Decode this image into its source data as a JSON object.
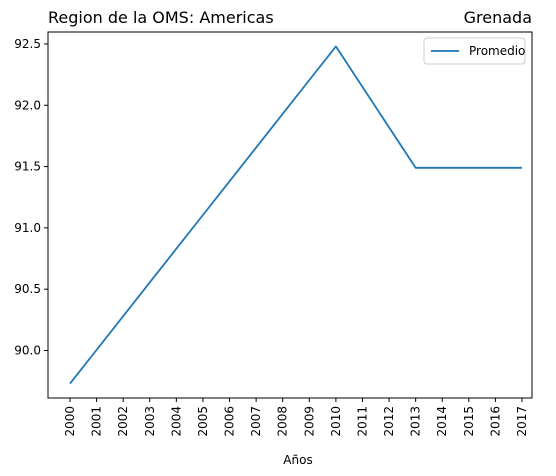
{
  "chart_data": {
    "type": "line",
    "title_left": "Region de la OMS: Americas",
    "title_right": "Grenada",
    "xlabel": "Años",
    "ylabel": "",
    "categories": [
      "2000",
      "2001",
      "2002",
      "2003",
      "2004",
      "2005",
      "2006",
      "2007",
      "2008",
      "2009",
      "2010",
      "2011",
      "2012",
      "2013",
      "2014",
      "2015",
      "2016",
      "2017"
    ],
    "series": [
      {
        "name": "Promedio",
        "color": "#1f77b4",
        "values": [
          89.73,
          90.005,
          90.28,
          90.555,
          90.83,
          91.105,
          91.38,
          91.655,
          91.93,
          92.205,
          92.48,
          92.15,
          91.82,
          91.49,
          91.49,
          91.49,
          91.49,
          91.49
        ]
      }
    ],
    "ylim": [
      89.6125,
      92.5975
    ],
    "yticks": [
      90.0,
      90.5,
      91.0,
      91.5,
      92.0,
      92.5
    ],
    "ytick_labels": [
      "90.0",
      "90.5",
      "91.0",
      "91.5",
      "92.0",
      "92.5"
    ],
    "grid": false,
    "legend_position": "top-right"
  }
}
